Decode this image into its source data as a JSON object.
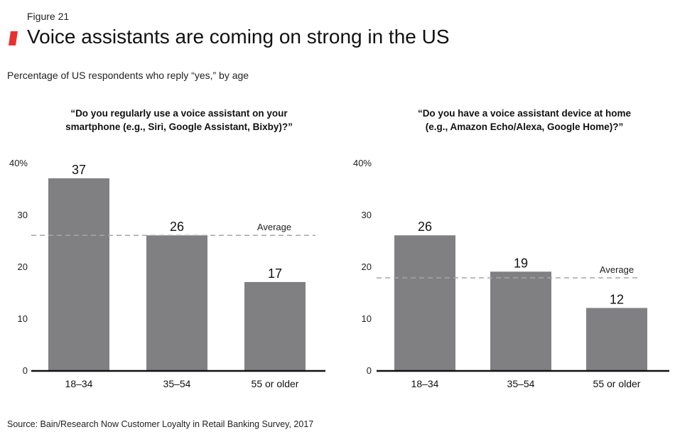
{
  "figure_label": "Figure 21",
  "title": "Voice assistants are coming on strong in the US",
  "subtitle": "Percentage of US respondents who reply “yes,” by age",
  "source": "Source: Bain/Research Now Customer Loyalty in Retail Banking Survey, 2017",
  "colors": {
    "bar": "#808083",
    "accent": "#e8312f",
    "average_line": "#a6a6a6",
    "axis": "#111111"
  },
  "chart_data": [
    {
      "type": "bar",
      "title_lines": [
        "“Do you regularly use a voice assistant on your",
        "smartphone (e.g., Siri, Google Assistant, Bixby)?”"
      ],
      "categories": [
        "18–34",
        "35–54",
        "55 or older"
      ],
      "values": [
        37,
        26,
        17
      ],
      "data_labels": [
        "37",
        "26",
        "17"
      ],
      "average": 26,
      "average_label": "Average",
      "ylim": [
        0,
        40
      ],
      "yticks": [
        "0",
        "10",
        "20",
        "30",
        "40%"
      ],
      "grid": false
    },
    {
      "type": "bar",
      "title_lines": [
        "“Do you have a voice assistant device at home",
        "(e.g., Amazon Echo/Alexa, Google Home)?”"
      ],
      "categories": [
        "18–34",
        "35–54",
        "55 or older"
      ],
      "values": [
        26,
        19,
        12
      ],
      "data_labels": [
        "26",
        "19",
        "12"
      ],
      "average": 17.8,
      "average_label": "Average",
      "ylim": [
        0,
        40
      ],
      "yticks": [
        "0",
        "10",
        "20",
        "30",
        "40%"
      ],
      "grid": false
    }
  ]
}
